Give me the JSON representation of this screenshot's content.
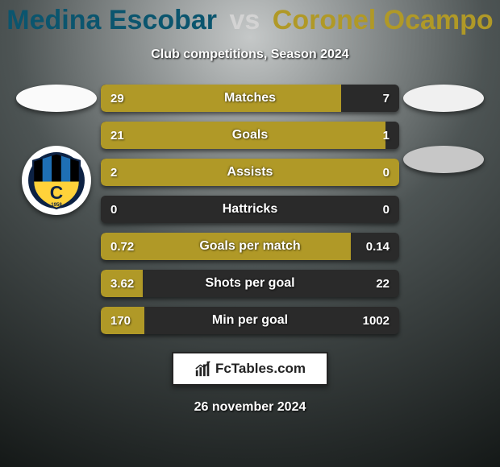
{
  "title": {
    "player1": "Medina Escobar",
    "vs": "vs",
    "player2": "Coronel Ocampo",
    "player1_color": "#0b556e",
    "vs_color": "#d3d3d3",
    "player2_color": "#b09927",
    "fontsize": 34
  },
  "subtitle": "Club competitions, Season 2024",
  "colors": {
    "bar_left_bg": "#2a2a2a",
    "bar_left_win": "#b09927",
    "bar_right_bg": "#2a2a2a",
    "bar_right_win": "#b09927",
    "bg_top": "#c5c8c8",
    "bg_mid": "#4d5454",
    "bg_bottom": "#141817"
  },
  "stats": [
    {
      "label": "Matches",
      "left_raw": 29,
      "right_raw": 7,
      "left_disp": "29",
      "right_disp": "7",
      "left_pct": 80.6,
      "right_pct": 19.4,
      "left_win": true,
      "right_win": false
    },
    {
      "label": "Goals",
      "left_raw": 21,
      "right_raw": 1,
      "left_disp": "21",
      "right_disp": "1",
      "left_pct": 95.5,
      "right_pct": 4.5,
      "left_win": true,
      "right_win": false
    },
    {
      "label": "Assists",
      "left_raw": 2,
      "right_raw": 0,
      "left_disp": "2",
      "right_disp": "0",
      "left_pct": 100,
      "right_pct": 0,
      "left_win": true,
      "right_win": false
    },
    {
      "label": "Hattricks",
      "left_raw": 0,
      "right_raw": 0,
      "left_disp": "0",
      "right_disp": "0",
      "left_pct": 50,
      "right_pct": 50,
      "left_win": false,
      "right_win": false
    },
    {
      "label": "Goals per match",
      "left_raw": 0.72,
      "right_raw": 0.14,
      "left_disp": "0.72",
      "right_disp": "0.14",
      "left_pct": 83.7,
      "right_pct": 16.3,
      "left_win": true,
      "right_win": false
    },
    {
      "label": "Shots per goal",
      "left_raw": 3.62,
      "right_raw": 22,
      "left_disp": "3.62",
      "right_disp": "22",
      "left_pct": 14.1,
      "right_pct": 85.9,
      "left_win": true,
      "right_win": false
    },
    {
      "label": "Min per goal",
      "left_raw": 170,
      "right_raw": 1002,
      "left_disp": "170",
      "right_disp": "1002",
      "left_pct": 14.5,
      "right_pct": 85.5,
      "left_win": true,
      "right_win": false
    }
  ],
  "footer_brand": "FcTables.com",
  "date": "26 november 2024",
  "club_badge": {
    "outer_text": "INDEPENDIENTE DEL VALLE",
    "year": "1958",
    "stripes": [
      "#000000",
      "#1e6fb4",
      "#000000",
      "#1e6fb4",
      "#000000"
    ],
    "inner_bg": "#ffd23a",
    "c_color": "#0d2244"
  }
}
